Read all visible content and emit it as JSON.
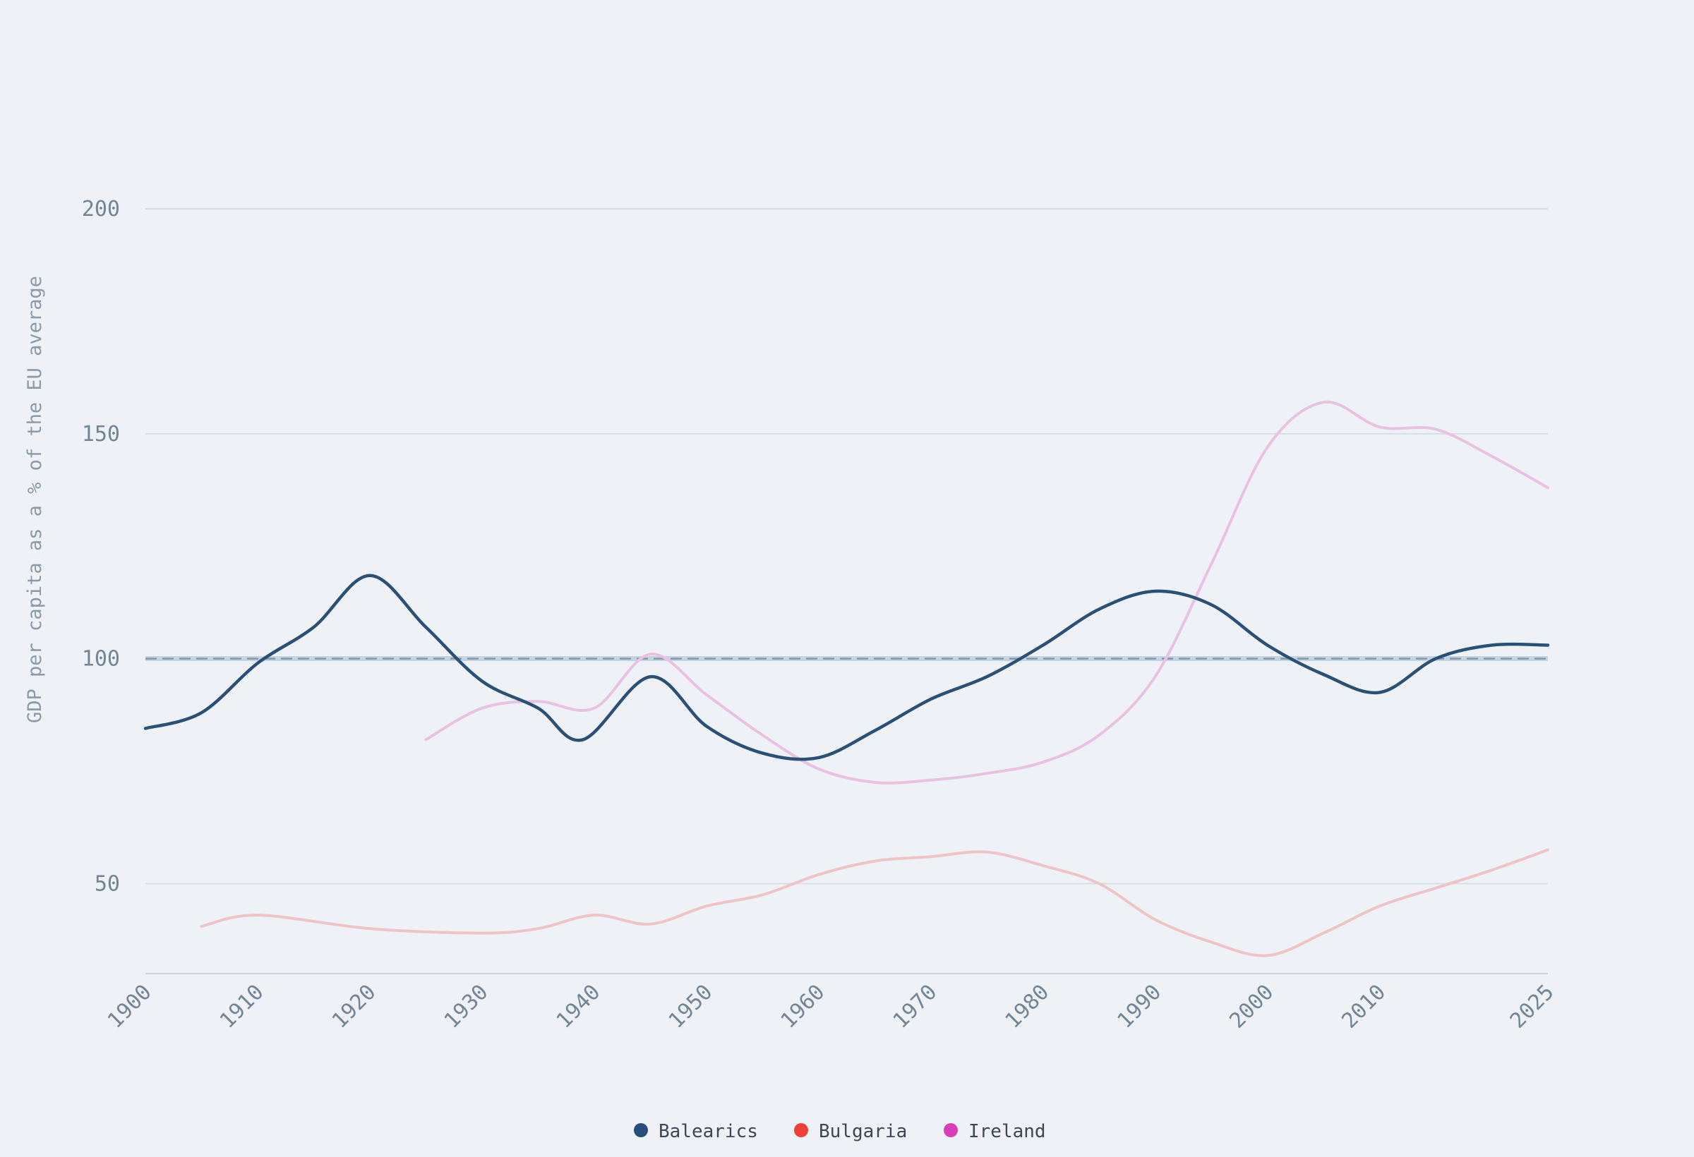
{
  "chart_data": {
    "type": "line",
    "title": "",
    "xlabel": "",
    "ylabel": "GDP per capita as a % of the EU average",
    "xlim": [
      1900,
      2025
    ],
    "ylim": [
      30,
      200
    ],
    "x_ticks": [
      1900,
      1910,
      1920,
      1930,
      1940,
      1950,
      1960,
      1970,
      1980,
      1990,
      2000,
      2010,
      2025
    ],
    "y_ticks": [
      50,
      100,
      150,
      200
    ],
    "grid": "horizontal",
    "reference_line": {
      "y": 100,
      "style": "dashed"
    },
    "legend_position": "bottom-center",
    "series": [
      {
        "name": "Balearics",
        "color": "#264e78",
        "line_color": "#2a5075",
        "points": [
          [
            1900,
            84.5
          ],
          [
            1905,
            88
          ],
          [
            1910,
            99
          ],
          [
            1915,
            107
          ],
          [
            1920,
            118.5
          ],
          [
            1925,
            107
          ],
          [
            1930,
            95
          ],
          [
            1935,
            89
          ],
          [
            1939,
            82
          ],
          [
            1945,
            96
          ],
          [
            1950,
            85
          ],
          [
            1955,
            79
          ],
          [
            1960,
            78
          ],
          [
            1965,
            84
          ],
          [
            1970,
            91
          ],
          [
            1975,
            96
          ],
          [
            1980,
            103
          ],
          [
            1985,
            111
          ],
          [
            1990,
            115
          ],
          [
            1995,
            112
          ],
          [
            2000,
            103
          ],
          [
            2005,
            96.5
          ],
          [
            2010,
            92.5
          ],
          [
            2015,
            100
          ],
          [
            2020,
            103
          ],
          [
            2025,
            103
          ]
        ]
      },
      {
        "name": "Bulgaria",
        "color": "#ef4036",
        "line_color": "#efc4c6",
        "points": [
          [
            1905,
            40.5
          ],
          [
            1910,
            43
          ],
          [
            1920,
            40
          ],
          [
            1930,
            39
          ],
          [
            1935,
            40
          ],
          [
            1940,
            43
          ],
          [
            1945,
            41
          ],
          [
            1950,
            45
          ],
          [
            1955,
            47.5
          ],
          [
            1960,
            52
          ],
          [
            1965,
            55
          ],
          [
            1970,
            56
          ],
          [
            1975,
            57
          ],
          [
            1980,
            54
          ],
          [
            1985,
            50
          ],
          [
            1990,
            42
          ],
          [
            1995,
            37
          ],
          [
            2000,
            34
          ],
          [
            2005,
            39
          ],
          [
            2010,
            45
          ],
          [
            2015,
            49
          ],
          [
            2020,
            53
          ],
          [
            2025,
            57.5
          ]
        ]
      },
      {
        "name": "Ireland",
        "color": "#d63fb6",
        "line_color": "#e9c1e1",
        "points": [
          [
            1925,
            82
          ],
          [
            1930,
            89
          ],
          [
            1935,
            90.5
          ],
          [
            1940,
            89
          ],
          [
            1945,
            101
          ],
          [
            1950,
            92
          ],
          [
            1955,
            83
          ],
          [
            1960,
            75.5
          ],
          [
            1965,
            72.5
          ],
          [
            1970,
            73
          ],
          [
            1975,
            74.5
          ],
          [
            1980,
            77
          ],
          [
            1985,
            83
          ],
          [
            1990,
            96
          ],
          [
            1995,
            121
          ],
          [
            2000,
            147
          ],
          [
            2005,
            157
          ],
          [
            2010,
            151.5
          ],
          [
            2015,
            151
          ],
          [
            2020,
            145
          ],
          [
            2025,
            138
          ]
        ]
      }
    ]
  }
}
